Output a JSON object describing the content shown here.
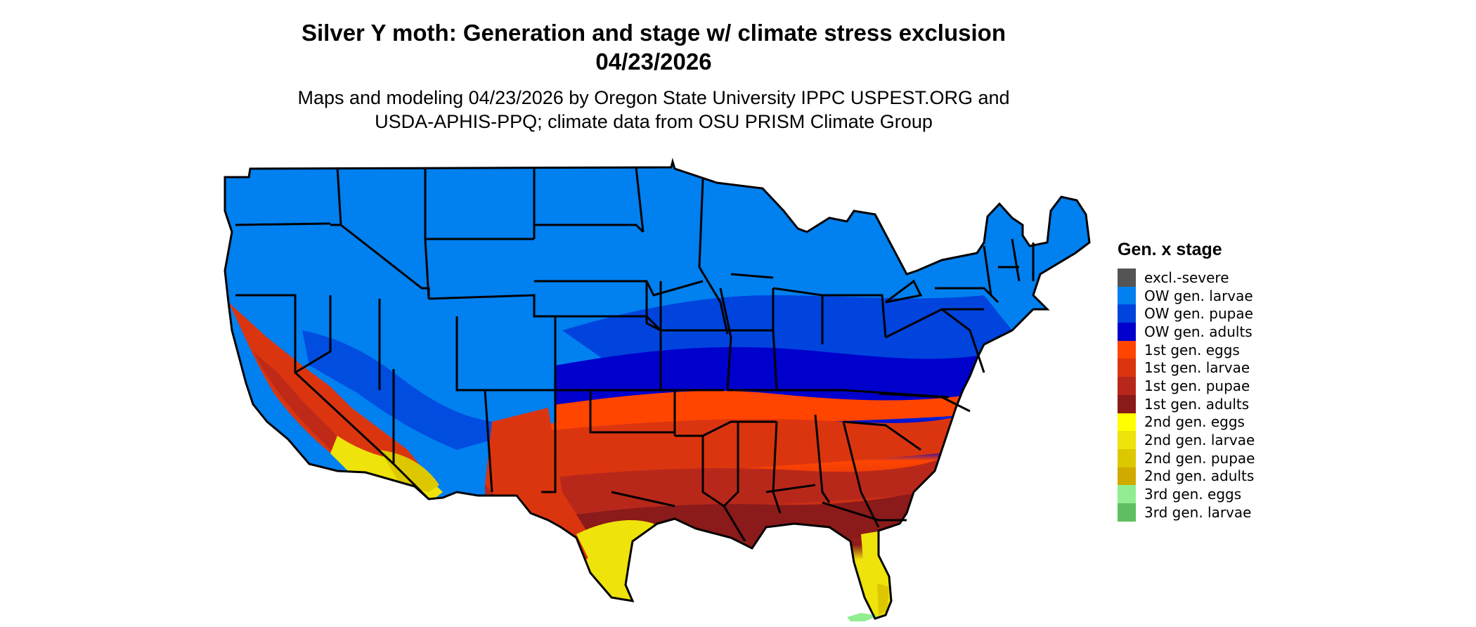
{
  "title": {
    "line1": "Silver Y moth: Generation and stage w/ climate stress exclusion",
    "line2": "04/23/2026"
  },
  "subtitle": {
    "line1": "Maps and modeling 04/23/2026 by Oregon State University IPPC USPEST.ORG and",
    "line2": "USDA-APHIS-PPQ; climate data from OSU PRISM Climate Group"
  },
  "legend": {
    "title": "Gen. x stage",
    "items": [
      {
        "label": "excl.-severe",
        "color": "#545454"
      },
      {
        "label": "OW gen. larvae",
        "color": "#0180f0"
      },
      {
        "label": "OW gen. pupae",
        "color": "#0044dd"
      },
      {
        "label": "OW gen. adults",
        "color": "#0000cd"
      },
      {
        "label": "1st gen. eggs",
        "color": "#ff4500"
      },
      {
        "label": "1st gen. larvae",
        "color": "#db3510"
      },
      {
        "label": "1st gen. pupae",
        "color": "#b8281a"
      },
      {
        "label": "1st gen. adults",
        "color": "#8b1a1a"
      },
      {
        "label": "2nd gen. eggs",
        "color": "#ffff00"
      },
      {
        "label": "2nd gen. larvae",
        "color": "#eee30a"
      },
      {
        "label": "2nd gen. pupae",
        "color": "#ddc800"
      },
      {
        "label": "2nd gen. adults",
        "color": "#d1aa00"
      },
      {
        "label": "3rd gen. eggs",
        "color": "#90ee90"
      },
      {
        "label": "3rd gen. larvae",
        "color": "#5fbe5f"
      }
    ]
  },
  "map": {
    "region": "contiguous-united-states",
    "border_color": "#000000"
  }
}
